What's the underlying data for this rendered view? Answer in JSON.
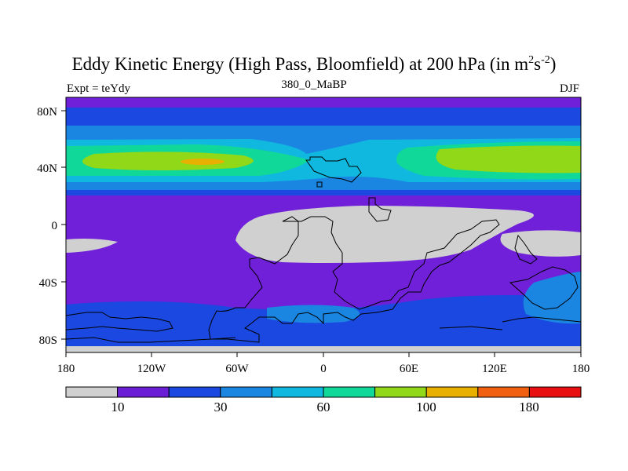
{
  "title": {
    "main": "Eddy Kinetic Energy (High Pass, Bloomfield) at 200 hPa (in m",
    "sup1": "2",
    "mid": "s",
    "sup2": "-2",
    "end": ")"
  },
  "subtitle": "380_0_MaBP",
  "left_label": "Expt = teYdy",
  "right_label": "DJF",
  "map": {
    "lat_ticks": [
      "80N",
      "40N",
      "0",
      "40S",
      "80S"
    ],
    "lon_ticks": [
      "180",
      "120W",
      "60W",
      "0",
      "60E",
      "120E",
      "180"
    ],
    "background_color": "#7020d8",
    "land_color": "#d0d0d0"
  },
  "colorbar": {
    "colors": [
      "#d0d0d0",
      "#6a1ed6",
      "#1a48e0",
      "#1a86e2",
      "#10b8e0",
      "#10d898",
      "#90d818",
      "#e8b000",
      "#f06010",
      "#e81010"
    ],
    "labels": [
      "10",
      "30",
      "60",
      "100",
      "180"
    ]
  }
}
